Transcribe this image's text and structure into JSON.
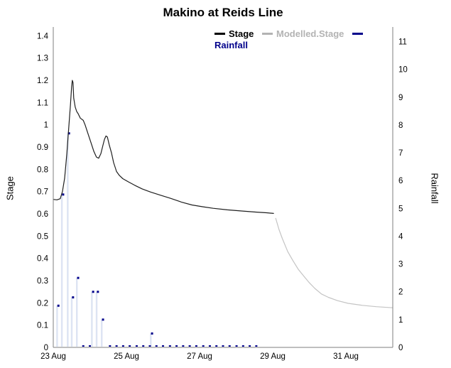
{
  "title": "Makino at Reids Line",
  "axes": {
    "left_title": "Stage",
    "right_title": "Rainfall"
  },
  "legend": {
    "items": [
      {
        "label": "Stage",
        "color": "#000000"
      },
      {
        "label": "Modelled.Stage",
        "color": "#b3b3b3"
      },
      {
        "label": "Rainfall",
        "color": "#00008b"
      }
    ]
  },
  "colors": {
    "stage_line": "#1f1f1f",
    "modelled_line": "#c4c4c4",
    "rainfall": "#00008b",
    "rain_bar": "#dde4f3",
    "axis": "#7f7f7f",
    "tick_text": "#000000"
  },
  "chart_data": {
    "type": "line",
    "title": "Makino at Reids Line",
    "x_unit": "days since 23 Aug 00:00",
    "x_range": [
      0,
      9.28
    ],
    "x_ticks": [
      {
        "v": 0,
        "label": "23 Aug"
      },
      {
        "v": 2,
        "label": "25 Aug"
      },
      {
        "v": 4,
        "label": "27 Aug"
      },
      {
        "v": 6,
        "label": "29 Aug"
      },
      {
        "v": 8,
        "label": "31 Aug"
      }
    ],
    "stage_axis": {
      "title": "Stage",
      "range": [
        0,
        1.43
      ],
      "ticks": [
        0,
        0.1,
        0.2,
        0.3,
        0.4,
        0.5,
        0.6,
        0.7,
        0.8,
        0.9,
        1,
        1.1,
        1.2,
        1.3,
        1.4
      ]
    },
    "rain_axis": {
      "title": "Rainfall",
      "range": [
        0,
        11.45
      ],
      "ticks": [
        0,
        1,
        2,
        3,
        4,
        5,
        6,
        7,
        8,
        9,
        10,
        11
      ]
    },
    "series": [
      {
        "name": "Stage",
        "kind": "line",
        "axis": "stage",
        "points": [
          [
            0,
            0.665
          ],
          [
            0.1,
            0.663
          ],
          [
            0.19,
            0.668
          ],
          [
            0.25,
            0.7
          ],
          [
            0.31,
            0.76
          ],
          [
            0.37,
            0.87
          ],
          [
            0.43,
            1.0
          ],
          [
            0.47,
            1.09
          ],
          [
            0.5,
            1.17
          ],
          [
            0.52,
            1.2
          ],
          [
            0.54,
            1.19
          ],
          [
            0.56,
            1.12
          ],
          [
            0.6,
            1.08
          ],
          [
            0.64,
            1.06
          ],
          [
            0.68,
            1.05
          ],
          [
            0.74,
            1.03
          ],
          [
            0.82,
            1.02
          ],
          [
            0.87,
            1.0
          ],
          [
            0.95,
            0.96
          ],
          [
            1.03,
            0.92
          ],
          [
            1.11,
            0.88
          ],
          [
            1.18,
            0.855
          ],
          [
            1.24,
            0.85
          ],
          [
            1.3,
            0.87
          ],
          [
            1.36,
            0.91
          ],
          [
            1.4,
            0.935
          ],
          [
            1.44,
            0.95
          ],
          [
            1.48,
            0.945
          ],
          [
            1.53,
            0.91
          ],
          [
            1.59,
            0.875
          ],
          [
            1.65,
            0.83
          ],
          [
            1.73,
            0.79
          ],
          [
            1.81,
            0.772
          ],
          [
            1.9,
            0.758
          ],
          [
            2.04,
            0.745
          ],
          [
            2.23,
            0.728
          ],
          [
            2.43,
            0.712
          ],
          [
            2.66,
            0.698
          ],
          [
            2.91,
            0.685
          ],
          [
            3.2,
            0.67
          ],
          [
            3.5,
            0.653
          ],
          [
            3.79,
            0.64
          ],
          [
            4.08,
            0.632
          ],
          [
            4.37,
            0.625
          ],
          [
            4.76,
            0.618
          ],
          [
            5.15,
            0.613
          ],
          [
            5.53,
            0.608
          ],
          [
            5.83,
            0.605
          ],
          [
            6.02,
            0.602
          ]
        ]
      },
      {
        "name": "Modelled.Stage",
        "kind": "line",
        "axis": "stage",
        "points": [
          [
            6.08,
            0.58
          ],
          [
            6.17,
            0.53
          ],
          [
            6.26,
            0.49
          ],
          [
            6.41,
            0.43
          ],
          [
            6.55,
            0.39
          ],
          [
            6.7,
            0.35
          ],
          [
            6.85,
            0.32
          ],
          [
            7.0,
            0.29
          ],
          [
            7.15,
            0.265
          ],
          [
            7.33,
            0.24
          ],
          [
            7.52,
            0.225
          ],
          [
            7.77,
            0.21
          ],
          [
            8.06,
            0.198
          ],
          [
            8.45,
            0.189
          ],
          [
            8.83,
            0.183
          ],
          [
            9.28,
            0.178
          ]
        ]
      },
      {
        "name": "Rainfall",
        "kind": "scatter-bar",
        "axis": "rain",
        "points": [
          [
            0.14,
            1.5
          ],
          [
            0.27,
            5.5
          ],
          [
            0.43,
            7.7
          ],
          [
            0.54,
            1.8
          ],
          [
            0.68,
            2.5
          ],
          [
            1.09,
            2.0
          ],
          [
            1.22,
            2.0
          ],
          [
            1.36,
            1.0
          ],
          [
            2.7,
            0.5
          ]
        ],
        "zero_points": [
          0.82,
          1.0,
          1.55,
          1.73,
          1.91,
          2.09,
          2.28,
          2.46,
          2.64,
          2.82,
          3.0,
          3.19,
          3.37,
          3.55,
          3.73,
          3.91,
          4.1,
          4.28,
          4.46,
          4.64,
          4.82,
          5.01,
          5.19,
          5.37,
          5.55
        ]
      }
    ]
  }
}
